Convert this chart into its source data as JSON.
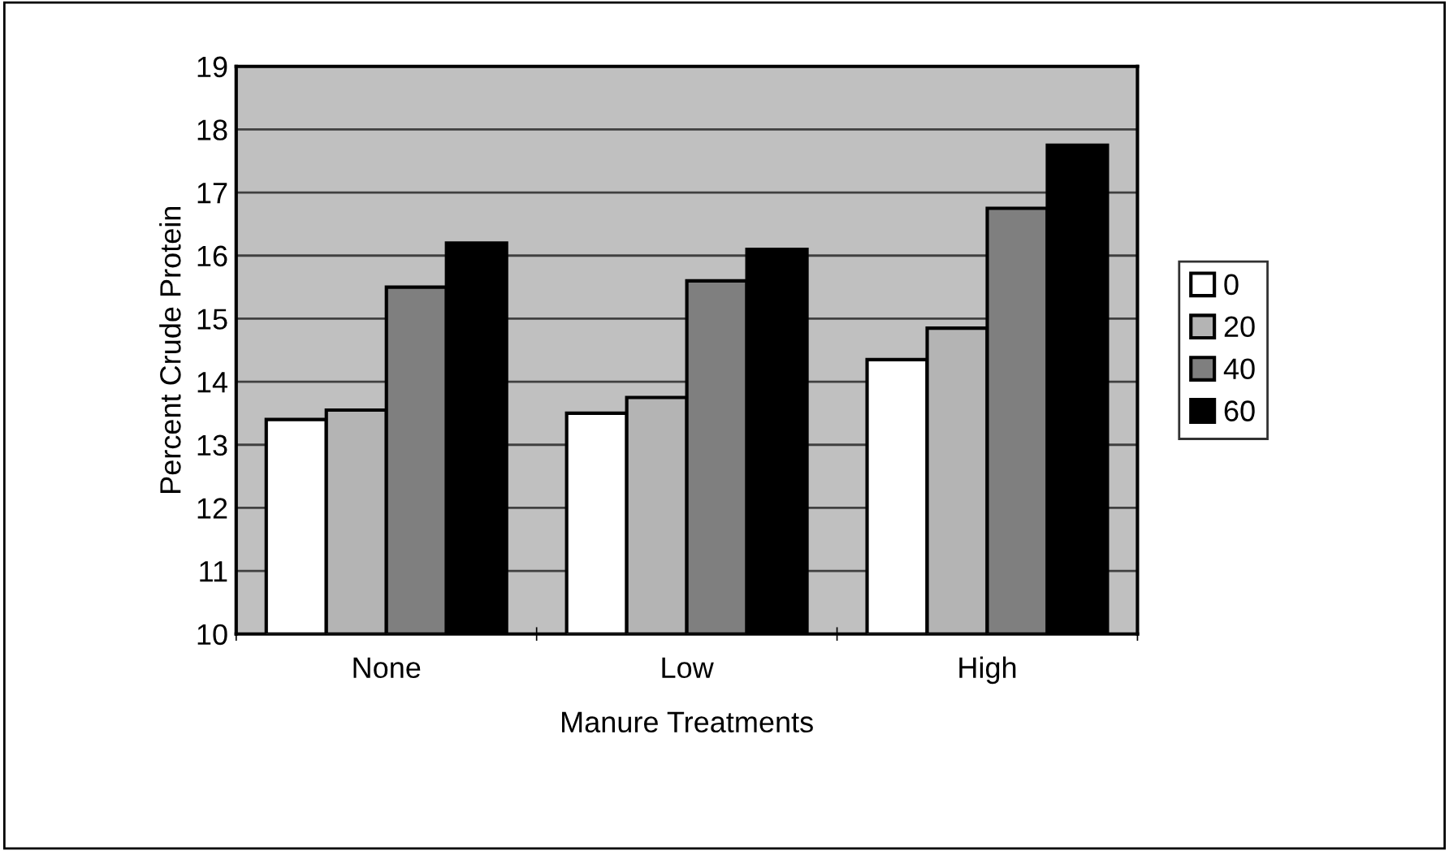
{
  "chart_data": {
    "type": "bar",
    "xlabel": "Manure Treatments",
    "ylabel": "Percent Crude Protein",
    "categories": [
      "None",
      "Low",
      "High"
    ],
    "series": [
      {
        "name": "0",
        "color": "#ffffff",
        "values": [
          13.4,
          13.5,
          14.35
        ]
      },
      {
        "name": "20",
        "color": "#b4b4b4",
        "values": [
          13.55,
          13.75,
          14.85
        ]
      },
      {
        "name": "40",
        "color": "#7f7f7f",
        "values": [
          15.5,
          15.6,
          16.75
        ]
      },
      {
        "name": "60",
        "color": "#000000",
        "values": [
          16.2,
          16.1,
          17.75
        ]
      }
    ],
    "ylim": [
      10,
      19
    ],
    "yticks": [
      10,
      11,
      12,
      13,
      14,
      15,
      16,
      17,
      18,
      19
    ],
    "grid": "y",
    "legend": "right"
  }
}
